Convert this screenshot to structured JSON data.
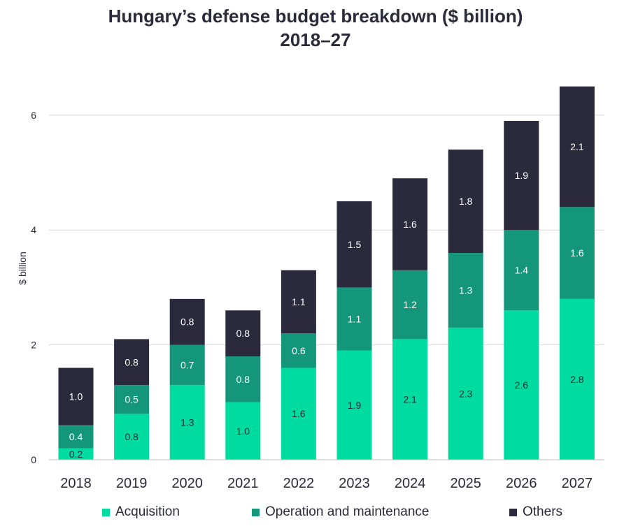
{
  "chart_data": {
    "type": "bar",
    "stacked": true,
    "title": "Hungary’s defense budget breakdown ($ billion)",
    "subtitle": "2018–27",
    "xlabel": "",
    "ylabel": "$ billion",
    "ylim": [
      0,
      6.5
    ],
    "yticks": [
      0,
      2,
      4,
      6
    ],
    "grid": true,
    "legend_position": "bottom",
    "categories": [
      "2018",
      "2019",
      "2020",
      "2021",
      "2022",
      "2023",
      "2024",
      "2025",
      "2026",
      "2027"
    ],
    "series": [
      {
        "name": "Acquisition",
        "color": "#00dca0",
        "label_color": "#2a2a3a",
        "values": [
          0.2,
          0.8,
          1.3,
          1.0,
          1.6,
          1.9,
          2.1,
          2.3,
          2.6,
          2.8
        ],
        "labels": [
          "0.2",
          "0.8",
          "1.3",
          "1.0",
          "1.6",
          "1.9",
          "2.1",
          "2.3",
          "2.6",
          "2.8"
        ]
      },
      {
        "name": "Operation and maintenance",
        "color": "#14967a",
        "label_color": "#ffffff",
        "values": [
          0.4,
          0.5,
          0.7,
          0.8,
          0.6,
          1.1,
          1.2,
          1.3,
          1.4,
          1.6
        ],
        "labels": [
          "0.4",
          "0.5",
          "0.7",
          "0.8",
          "0.6",
          "1.1",
          "1.2",
          "1.3",
          "1.4",
          "1.6"
        ]
      },
      {
        "name": "Others",
        "color": "#2b2a3d",
        "label_color": "#ffffff",
        "values": [
          1.0,
          0.8,
          0.8,
          0.8,
          1.1,
          1.5,
          1.6,
          1.8,
          1.9,
          2.1
        ],
        "labels": [
          "1.0",
          "0.8",
          "0.8",
          "0.8",
          "1.1",
          "1.5",
          "1.6",
          "1.8",
          "1.9",
          "2.1"
        ]
      }
    ]
  }
}
